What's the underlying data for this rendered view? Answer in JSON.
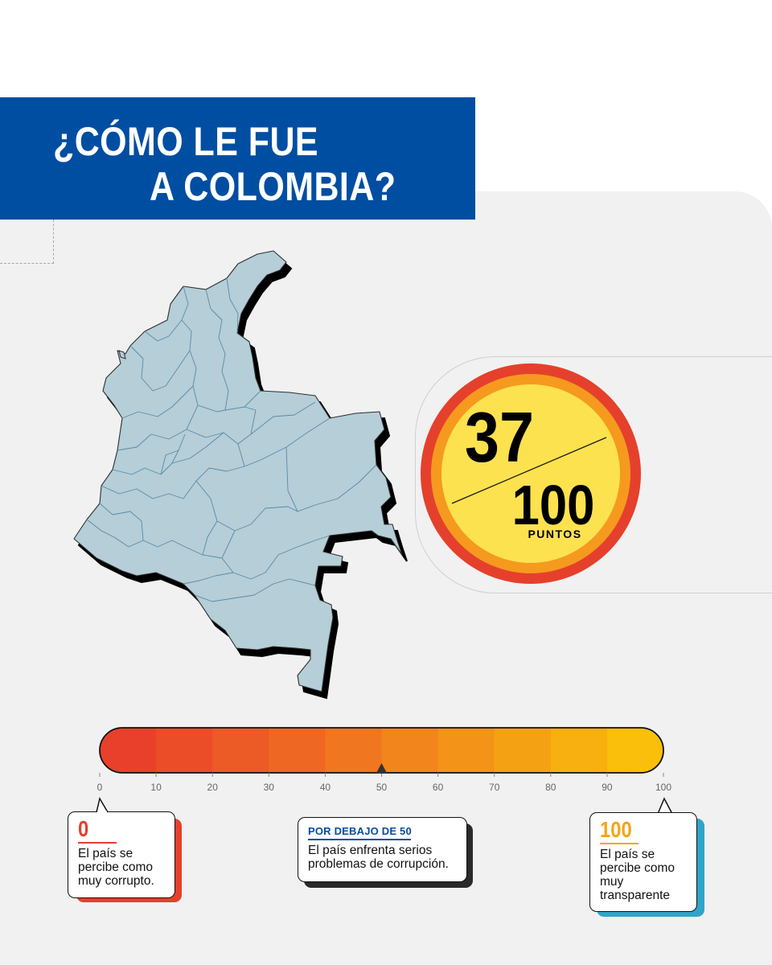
{
  "header": {
    "title_line1": "¿CÓMO LE FUE",
    "title_line2": "A COLOMBIA?"
  },
  "score": {
    "value": "37",
    "max": "100",
    "unit": "PUNTOS"
  },
  "scale": {
    "ticks": [
      "0",
      "10",
      "20",
      "30",
      "40",
      "50",
      "60",
      "70",
      "80",
      "90",
      "100"
    ],
    "marker_value": 50,
    "colors": [
      "#e9402c",
      "#eb4d29",
      "#ec5a26",
      "#ee6823",
      "#f07620",
      "#f2851c",
      "#f39318",
      "#f5a114",
      "#f7b00f",
      "#f9bf0a"
    ]
  },
  "notes": {
    "low": {
      "number": "0",
      "text": "El país se percibe como muy corrupto.",
      "color": "#e5402c"
    },
    "middle": {
      "heading": "POR DEBAJO DE 50",
      "text": "El país enfrenta serios problemas de corrupción."
    },
    "high": {
      "number": "100",
      "text": "El país se percibe como muy transparente",
      "color": "#f5a414",
      "shadow": "#2fa5c8"
    }
  },
  "colors": {
    "brand_blue": "#004ea2",
    "map_fill": "#b5ced8",
    "badge_red": "#e5402c",
    "badge_orange": "#f59a1f",
    "badge_yellow": "#fde24f"
  }
}
